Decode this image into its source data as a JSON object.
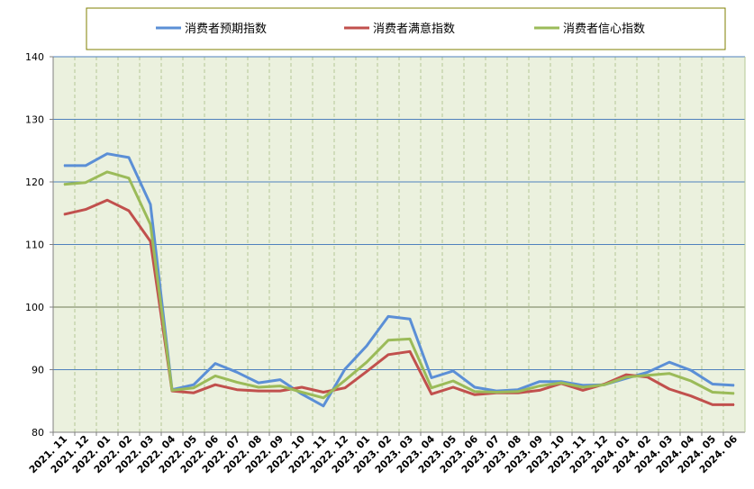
{
  "chart_data": {
    "type": "line",
    "categories": [
      "2021. 11",
      "2021. 12",
      "2022. 01",
      "2022. 02",
      "2022. 03",
      "2022. 04",
      "2022. 05",
      "2022. 06",
      "2022. 07",
      "2022. 08",
      "2022. 09",
      "2022. 10",
      "2022. 11",
      "2022. 12",
      "2023. 01",
      "2023. 02",
      "2023. 03",
      "2023. 04",
      "2023. 05",
      "2023. 06",
      "2023. 07",
      "2023. 08",
      "2023. 09",
      "2023. 10",
      "2023. 11",
      "2023. 12",
      "2024. 01",
      "2024. 02",
      "2024. 03",
      "2024. 04",
      "2024. 05",
      "2024. 06"
    ],
    "series": [
      {
        "name": "消费者预期指数",
        "color": "#5b8fd6",
        "values": [
          122.6,
          122.6,
          124.5,
          123.9,
          116.4,
          86.8,
          87.6,
          91.0,
          89.6,
          87.9,
          88.4,
          86.1,
          84.2,
          90.1,
          93.8,
          98.5,
          98.1,
          88.7,
          89.8,
          87.2,
          86.6,
          86.8,
          88.1,
          88.1,
          87.5,
          87.6,
          88.6,
          89.6,
          91.2,
          89.9,
          87.7,
          87.5
        ]
      },
      {
        "name": "消费者满意指数",
        "color": "#c1504d",
        "values": [
          114.8,
          115.6,
          117.1,
          115.4,
          110.5,
          86.6,
          86.3,
          87.6,
          86.8,
          86.6,
          86.6,
          87.2,
          86.4,
          87.1,
          89.7,
          92.4,
          92.9,
          86.1,
          87.2,
          86.0,
          86.3,
          86.3,
          86.7,
          87.8,
          86.7,
          87.7,
          89.2,
          88.8,
          86.9,
          85.8,
          84.4,
          84.4
        ]
      },
      {
        "name": "消费者信心指数",
        "color": "#9bbb59",
        "values": [
          119.6,
          119.9,
          121.6,
          120.6,
          113.2,
          86.7,
          87.1,
          89.0,
          88.0,
          87.2,
          87.4,
          86.4,
          85.5,
          88.3,
          91.2,
          94.7,
          94.9,
          87.1,
          88.2,
          86.5,
          86.4,
          86.5,
          87.4,
          87.9,
          87.2,
          87.6,
          88.8,
          89.1,
          89.4,
          88.2,
          86.4,
          86.2
        ]
      }
    ],
    "ylim": [
      80,
      140
    ],
    "yticks": [
      80,
      90,
      100,
      110,
      120,
      130,
      140
    ],
    "grid": true,
    "legend": "top"
  }
}
